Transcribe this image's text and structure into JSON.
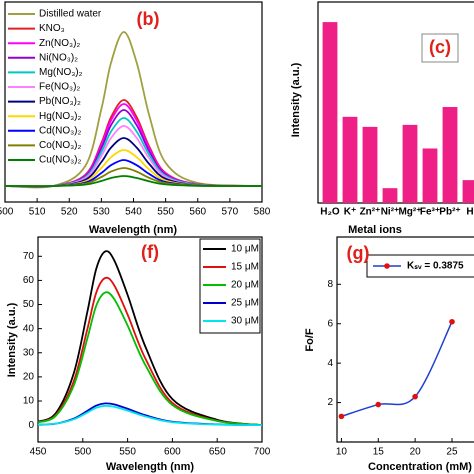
{
  "chart_data": [
    {
      "type": "line",
      "panel_label": "(b)",
      "xlabel": "Wavelength (nm)",
      "legend": "upper left",
      "x": [
        500,
        515,
        525,
        530,
        533,
        537,
        541,
        545,
        550,
        560,
        580
      ],
      "xlim": [
        500,
        580
      ],
      "xticks": [
        500,
        510,
        520,
        530,
        540,
        550,
        560,
        570,
        580
      ],
      "ylim": [
        0,
        100
      ],
      "series": [
        {
          "name": "Distilled water",
          "color": "#a0a040",
          "values": [
            8,
            8,
            18,
            46.5,
            69.6,
            85,
            69.6,
            42.7,
            19.6,
            9.5,
            8
          ]
        },
        {
          "name": "KNO₃",
          "color": "#e02020",
          "values": [
            8,
            8,
            13.6,
            29.5,
            42.4,
            51,
            42.4,
            27.4,
            14.5,
            8.9,
            8
          ]
        },
        {
          "name": "Zn(NO₃)₂",
          "color": "#ff00ff",
          "values": [
            8,
            8,
            13.3,
            28.5,
            40.8,
            49,
            40.8,
            26.5,
            14.2,
            8.8,
            8
          ]
        },
        {
          "name": "Ni(NO₃)₂",
          "color": "#9400d3",
          "values": [
            8,
            8,
            12.9,
            27,
            38.4,
            46,
            38.4,
            25.1,
            13.7,
            8.8,
            8
          ]
        },
        {
          "name": "Mg(NO₃)₂",
          "color": "#00c8c8",
          "values": [
            8,
            8,
            12.4,
            25,
            35.2,
            42,
            35.2,
            23.3,
            13.1,
            8.7,
            8
          ]
        },
        {
          "name": "Fe(NO₃)₂",
          "color": "#ff80ff",
          "values": [
            8,
            8,
            11.9,
            23,
            32,
            38,
            32,
            21.5,
            12.5,
            8.6,
            8
          ]
        },
        {
          "name": "Pb(NO₃)₂",
          "color": "#000080",
          "values": [
            8,
            8,
            11.1,
            20,
            27.2,
            32,
            27.2,
            18.8,
            11.6,
            8.5,
            8
          ]
        },
        {
          "name": "Hg(NO₃)₂",
          "color": "#ffd700",
          "values": [
            8,
            8,
            10.3,
            17,
            22.4,
            26,
            22.4,
            16.1,
            10.7,
            8.4,
            8
          ]
        },
        {
          "name": "Cd(NO₃)₂",
          "color": "#0000ff",
          "values": [
            8,
            8,
            9.7,
            14.5,
            18.4,
            21,
            18.4,
            13.9,
            10,
            8.3,
            8
          ]
        },
        {
          "name": "Co(NO₃)₂",
          "color": "#808000",
          "values": [
            8,
            8,
            9.2,
            12.5,
            15.2,
            17,
            15.2,
            12,
            9.4,
            8.2,
            8
          ]
        },
        {
          "name": "Cu(NO₃)₂",
          "color": "#008000",
          "values": [
            8,
            8,
            8.7,
            10.5,
            12,
            13,
            12,
            10.3,
            8.8,
            8.1,
            8
          ]
        }
      ]
    },
    {
      "type": "bar",
      "panel_label": "(c)",
      "xlabel": "Metal ions",
      "ylabel": "Intensity (a.u.)",
      "categories": [
        "H₂O",
        "K⁺",
        "Zn²⁺",
        "Ni²⁺",
        "Mg²⁺",
        "Fe³⁺",
        "Pb²⁺",
        "H"
      ],
      "values": [
        720,
        343,
        303,
        59,
        311,
        217,
        382,
        91
      ],
      "color": "#ee1f85",
      "ylim": [
        0,
        800
      ]
    },
    {
      "type": "line",
      "panel_label": "(f)",
      "xlabel": "Wavelength (nm)",
      "ylabel": "Intensity (a.u.)",
      "legend": "upper right",
      "x": [
        450,
        470,
        490,
        505,
        515,
        525,
        535,
        550,
        570,
        600,
        650,
        700
      ],
      "xlim": [
        450,
        700
      ],
      "xticks": [
        450,
        500,
        550,
        600,
        650,
        700
      ],
      "ylim": [
        -7,
        78
      ],
      "yticks": [
        0,
        10,
        20,
        30,
        40,
        50,
        60,
        70
      ],
      "series": [
        {
          "name": "10 μM",
          "color": "#000000",
          "values": [
            1.4,
            5,
            21.6,
            46.8,
            64.8,
            72,
            68.4,
            54,
            32.4,
            10.8,
            2.2,
            0
          ]
        },
        {
          "name": "15 μM",
          "color": "#e01010",
          "values": [
            1.2,
            4.3,
            18.3,
            39.7,
            54.9,
            61,
            58,
            45.8,
            27.5,
            9.2,
            1.8,
            0
          ]
        },
        {
          "name": "20 μM",
          "color": "#00c000",
          "values": [
            1.1,
            3.9,
            16.5,
            35.8,
            49.5,
            55,
            52.3,
            41.3,
            24.8,
            8.3,
            1.7,
            0
          ]
        },
        {
          "name": "25 μM",
          "color": "#0000cc",
          "values": [
            0.2,
            0.6,
            2.7,
            5.9,
            8.1,
            9,
            8.6,
            6.8,
            4.1,
            1.4,
            0.3,
            0
          ]
        },
        {
          "name": "30 μM",
          "color": "#00e5ee",
          "values": [
            0.2,
            0.6,
            2.4,
            5.2,
            7.2,
            8,
            7.6,
            6,
            3.6,
            1.2,
            0.2,
            0
          ]
        }
      ]
    },
    {
      "type": "line",
      "panel_label": "(g)",
      "xlabel": "Concentration (mM)",
      "ylabel": "Fo/F",
      "legend": "upper center",
      "markers": true,
      "marker_color": "#e01010",
      "x": [
        10,
        15,
        20,
        25
      ],
      "xlim": [
        9.4,
        28.8
      ],
      "xticks": [
        10,
        15,
        20,
        25
      ],
      "ylim": [
        0,
        10.4
      ],
      "yticks": [
        2,
        4,
        6,
        8
      ],
      "series": [
        {
          "name": "Kₛᵥ = 0.3875",
          "color": "#1f3fd0",
          "values": [
            1.3,
            1.9,
            2.3,
            6.1
          ]
        }
      ]
    }
  ]
}
